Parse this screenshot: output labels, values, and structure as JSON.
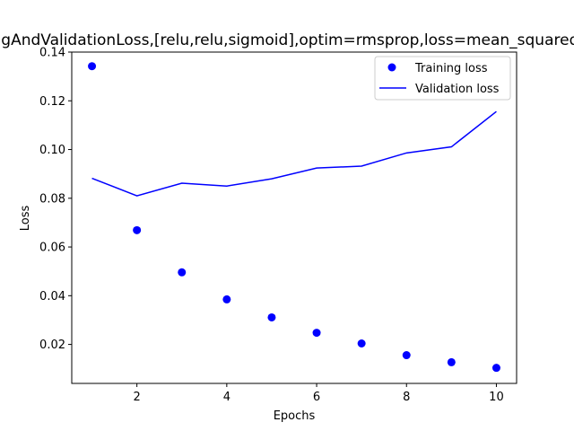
{
  "chart_data": {
    "type": "line",
    "title": "TrainingAndValidationLoss,[relu,relu,sigmoid],optim=rmsprop,loss=mean_squared_error",
    "xlabel": "Epochs",
    "ylabel": "Loss",
    "xlim": [
      0.55,
      10.45
    ],
    "ylim": [
      0.004,
      0.14
    ],
    "xticks": [
      2,
      4,
      6,
      8,
      10
    ],
    "yticks": [
      0.02,
      0.04,
      0.06,
      0.08,
      0.1,
      0.12,
      0.14
    ],
    "ytick_labels": [
      "0.02",
      "0.04",
      "0.06",
      "0.08",
      "0.10",
      "0.12",
      "0.14"
    ],
    "grid": false,
    "legend_position": "top-right",
    "x": [
      1,
      2,
      3,
      4,
      5,
      6,
      7,
      8,
      9,
      10
    ],
    "series": [
      {
        "name": "Training loss",
        "style": "scatter",
        "color": "#0000ff",
        "values": [
          0.1342,
          0.0669,
          0.0496,
          0.0385,
          0.0311,
          0.0248,
          0.0204,
          0.0156,
          0.0127,
          0.0104
        ]
      },
      {
        "name": "Validation loss",
        "style": "line",
        "color": "#0000ff",
        "values": [
          0.0882,
          0.081,
          0.0862,
          0.085,
          0.088,
          0.0924,
          0.0932,
          0.0986,
          0.1011,
          0.1156
        ]
      }
    ]
  }
}
